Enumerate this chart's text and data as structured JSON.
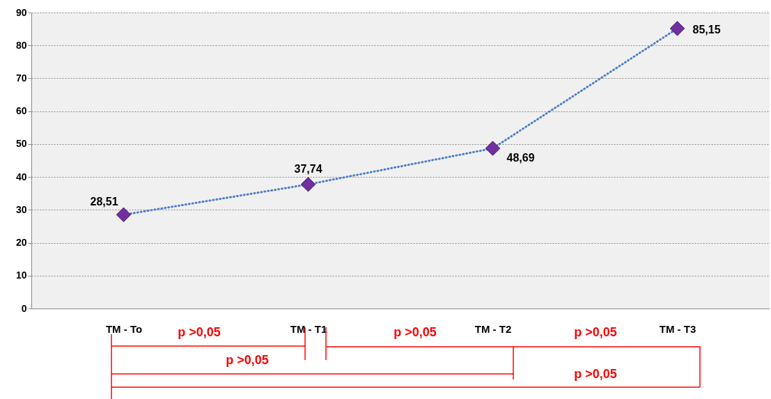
{
  "chart_data": {
    "type": "line",
    "categories": [
      "TM  - To",
      "TM  - T1",
      "TM  - T2",
      "TM  - T3"
    ],
    "series": [
      {
        "color": "#4f7fc4",
        "colors": [
          "#7030a0",
          "#7030a0",
          "#7030a0",
          "#7030a0"
        ],
        "values": [
          28.51,
          37.74,
          48.69,
          85.15
        ],
        "value_labels": [
          "28,51",
          "37,74",
          "48,69",
          "85,15"
        ]
      }
    ],
    "ylim": [
      0,
      90
    ],
    "yticks": [
      0,
      10,
      20,
      30,
      40,
      50,
      60,
      70,
      80,
      90
    ],
    "grid": "y",
    "marker": "diamond",
    "line_style": "dotted",
    "annotations": [
      "p >0,05",
      "p >0,05",
      "p >0,05",
      "p >0,05",
      "p >0,05"
    ]
  }
}
